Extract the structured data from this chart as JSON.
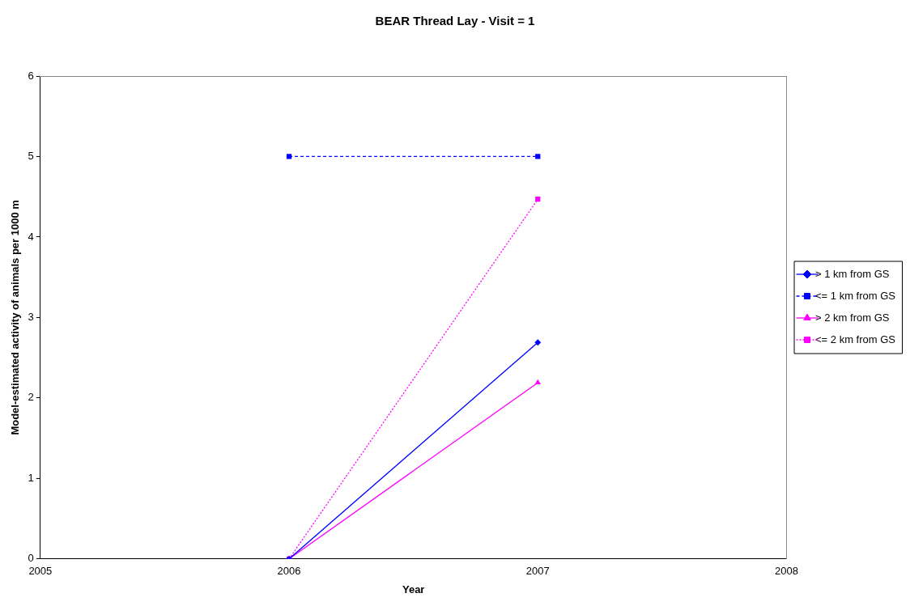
{
  "chart_data": {
    "type": "line",
    "title": "BEAR Thread Lay - Visit = 1",
    "xlabel": "Year",
    "ylabel": "Model-estimated activity of animals per 1000 m",
    "x": [
      2006,
      2007
    ],
    "series": [
      {
        "name": "> 1 km from GS",
        "color": "#0000ff",
        "values": [
          0,
          2.69
        ],
        "marker": "diamond",
        "line_style": "solid"
      },
      {
        "name": "<= 1 km from GS",
        "color": "#0000ff",
        "values": [
          5,
          5
        ],
        "marker": "square",
        "line_style": "dashed"
      },
      {
        "name": "> 2 km from GS",
        "color": "#ff00ff",
        "values": [
          0,
          2.19
        ],
        "marker": "triangle",
        "line_style": "solid"
      },
      {
        "name": "<= 2 km from GS",
        "color": "#ff00ff",
        "values": [
          0,
          4.47
        ],
        "marker": "square",
        "line_style": "dotted"
      }
    ],
    "xlim": [
      2005,
      2008
    ],
    "xticks": [
      2005,
      2006,
      2007,
      2008
    ],
    "ylim": [
      0,
      6
    ],
    "yticks": [
      0,
      1,
      2,
      3,
      4,
      5,
      6
    ],
    "grid": false,
    "legend": "right"
  }
}
